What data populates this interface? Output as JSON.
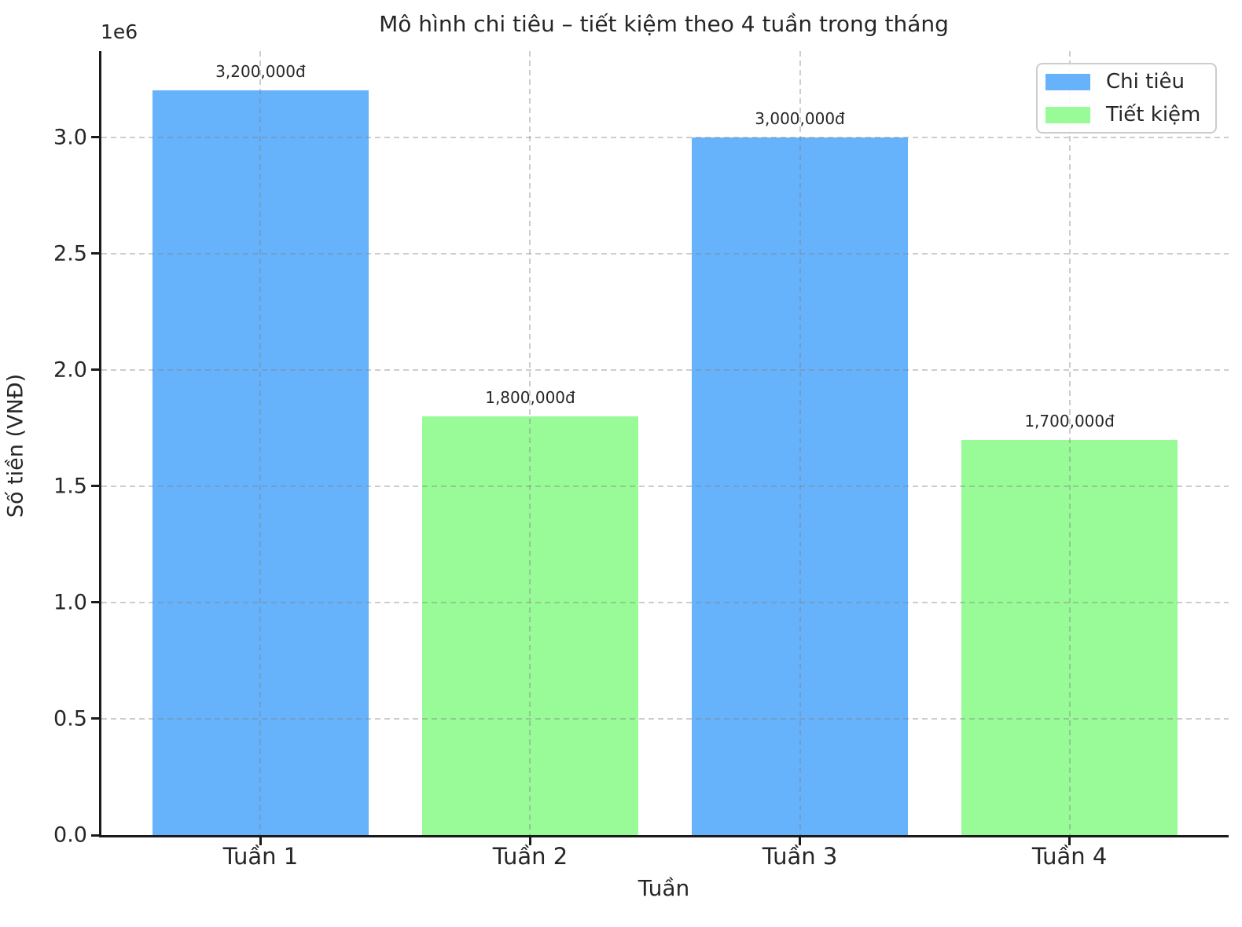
{
  "figure": {
    "background_color": "#ffffff",
    "text_color": "#262626",
    "spine_color": "#1a1a1a"
  },
  "chart_data": {
    "type": "bar",
    "title": "Mô hình chi tiêu – tiết kiệm theo 4 tuần trong tháng",
    "xlabel": "Tuần",
    "ylabel": "Số tiền (VNĐ)",
    "offset_text": "1e6",
    "categories": [
      "Tuần 1",
      "Tuần 2",
      "Tuần 3",
      "Tuần 4"
    ],
    "values": [
      3200000,
      1800000,
      3000000,
      1700000
    ],
    "bar_labels": [
      "3,200,000đ",
      "1,800,000đ",
      "3,000,000đ",
      "1,700,000đ"
    ],
    "bar_colors": [
      "#66b2fb",
      "#98fb98",
      "#66b2fb",
      "#98fb98"
    ],
    "ylim": [
      0,
      3370000
    ],
    "yticks": [
      0,
      500000,
      1000000,
      1500000,
      2000000,
      2500000,
      3000000
    ],
    "ytick_labels": [
      "0.0",
      "0.5",
      "1.0",
      "1.5",
      "2.0",
      "2.5",
      "3.0"
    ],
    "grid": true,
    "grid_style": "dashed",
    "legend": {
      "position": "upper right",
      "entries": [
        {
          "label": "Chi tiêu",
          "color": "#66b2fb"
        },
        {
          "label": "Tiết kiệm",
          "color": "#98fb98"
        }
      ]
    }
  }
}
